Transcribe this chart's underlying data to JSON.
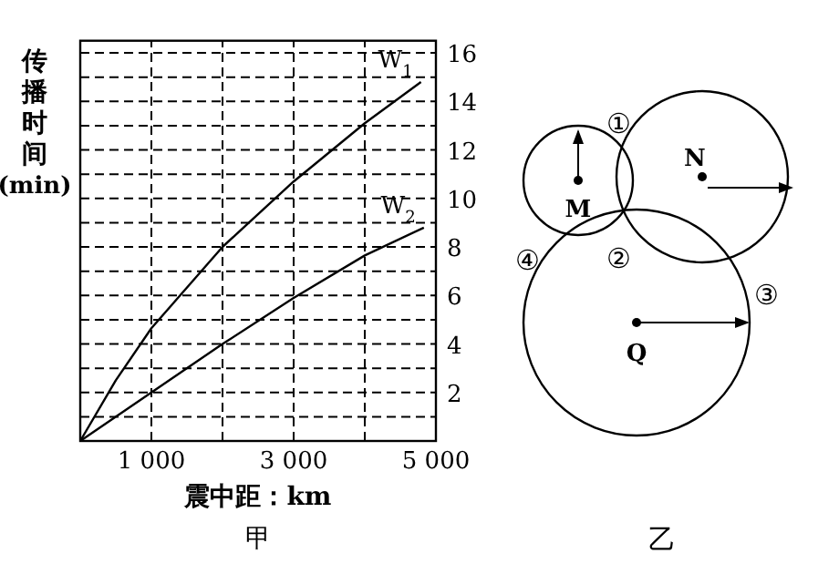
{
  "chart_data": [
    {
      "type": "line",
      "xlabel": "震中距：km",
      "ylabel": "传播时间(min)",
      "annotations": [
        "甲"
      ],
      "xlim": [
        0,
        5000
      ],
      "ylim": [
        0,
        16.5
      ],
      "xticks": [
        {
          "value": 1000,
          "label": "1 000"
        },
        {
          "value": 2000,
          "label": null
        },
        {
          "value": 3000,
          "label": "3 000"
        },
        {
          "value": 4000,
          "label": null
        },
        {
          "value": 5000,
          "label": "5 000"
        }
      ],
      "yticks": [
        {
          "value": 1,
          "label": null
        },
        2,
        {
          "value": 3,
          "label": null
        },
        4,
        {
          "value": 5,
          "label": null
        },
        6,
        {
          "value": 7,
          "label": null
        },
        8,
        {
          "value": 9,
          "label": null
        },
        10,
        {
          "value": 11,
          "label": null
        },
        12,
        {
          "value": 13,
          "label": null
        },
        14,
        {
          "value": 15,
          "label": null
        },
        16
      ],
      "grid": true,
      "series": [
        {
          "name": "W$_{1}$",
          "color": "#000000",
          "x": [
            0,
            500,
            1000,
            2000,
            3000,
            4000,
            4790
          ],
          "values": [
            0,
            2.5,
            4.65,
            8.0,
            10.7,
            13.1,
            14.8
          ]
        },
        {
          "name": "W$_{2}$",
          "color": "#000000",
          "x": [
            0,
            1000,
            2000,
            3000,
            4000,
            4830
          ],
          "values": [
            0,
            2.0,
            4.0,
            5.9,
            7.65,
            8.8
          ]
        }
      ]
    },
    {
      "type": "other",
      "title": "乙",
      "annotations": [
        "①",
        "②",
        "③",
        "④",
        "M",
        "N",
        "Q"
      ]
    }
  ]
}
